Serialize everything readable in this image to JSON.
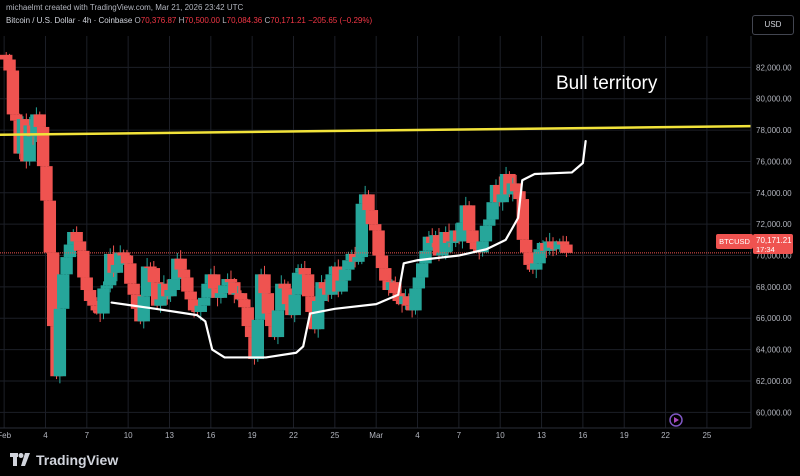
{
  "header": {
    "attribution": "michaelmt created with TradingView.com, Mar 21, 2026 23:42 UTC"
  },
  "symbol": {
    "name": "Bitcoin / U.S. Dollar · 4h · Coinbase",
    "open_label": "O",
    "open": "70,376.87",
    "high_label": "H",
    "high": "70,500.00",
    "low_label": "L",
    "low": "70,084.36",
    "close_label": "C",
    "close": "70,171.21",
    "change": "−205.65 (−0.29%)"
  },
  "currency_button": "USD",
  "annotation": "Bull territory",
  "price_tag": {
    "ticker": "BTCUSD",
    "price": "70,171.21",
    "countdown": "17:34"
  },
  "brand": "TradingView",
  "colors": {
    "up": "#26a69a",
    "down": "#ef5350",
    "level_line": "#f2e33a",
    "price_line": "#ef5350",
    "background": "#000000"
  },
  "chart_data": {
    "type": "candlestick",
    "timeframe": "4h",
    "ylim": [
      59000,
      84000
    ],
    "ytick_values": [
      60000,
      62000,
      64000,
      66000,
      68000,
      70000,
      72000,
      74000,
      76000,
      78000,
      80000,
      82000
    ],
    "ytick_labels": [
      "60,000.00",
      "62,000.00",
      "64,000.00",
      "66,000.00",
      "68,000.00",
      "70,000.00",
      "72,000.00",
      "74,000.00",
      "76,000.00",
      "78,000.00",
      "80,000.00",
      "82,000.00"
    ],
    "xtick_labels": [
      "Feb",
      "4",
      "7",
      "10",
      "13",
      "16",
      "19",
      "22",
      "25",
      "Mar",
      "4",
      "7",
      "10",
      "13",
      "16",
      "19",
      "22",
      "25"
    ],
    "x_range_days": [
      -0.3,
      54.2
    ],
    "last_price": 70171.21,
    "level_line": {
      "start": 77700,
      "end": 78250
    },
    "trend_path_days_price": [
      [
        7.8,
        67000
      ],
      [
        11,
        66600
      ],
      [
        14,
        66200
      ],
      [
        14.6,
        65800
      ],
      [
        15.1,
        64000
      ],
      [
        16,
        63500
      ],
      [
        19,
        63500
      ],
      [
        21.2,
        63800
      ],
      [
        21.7,
        64200
      ],
      [
        22.2,
        66300
      ],
      [
        24,
        66600
      ],
      [
        27,
        66900
      ],
      [
        28.6,
        67500
      ],
      [
        29,
        69500
      ],
      [
        30,
        69700
      ],
      [
        33,
        70000
      ],
      [
        35,
        70400
      ],
      [
        36.4,
        71000
      ],
      [
        37.3,
        72400
      ],
      [
        37.6,
        74800
      ],
      [
        38.5,
        75200
      ],
      [
        41.2,
        75300
      ],
      [
        42,
        75900
      ],
      [
        42.2,
        77300
      ]
    ],
    "candles_close": [
      82500,
      81800,
      79000,
      78600,
      76500,
      78700,
      76000,
      78300,
      77600,
      79000,
      78200,
      75700,
      73500,
      70200,
      65500,
      62300,
      66600,
      68800,
      69900,
      70700,
      71500,
      70900,
      70300,
      68600,
      67800,
      67100,
      66800,
      66500,
      66300,
      67900,
      68100,
      70100,
      68900,
      69400,
      70200,
      70000,
      69500,
      68200,
      67500,
      66600,
      65800,
      67400,
      69300,
      69200,
      68300,
      66800,
      67200,
      68200,
      67400,
      67800,
      68500,
      69800,
      69100,
      68600,
      67700,
      67200,
      66500,
      66400,
      66800,
      67300,
      68200,
      68800,
      67900,
      67300,
      67600,
      68100,
      68500,
      68300,
      67500,
      67600,
      67200,
      66700,
      65500,
      64800,
      63400,
      65900,
      68800,
      67600,
      66300,
      65500,
      64800,
      66500,
      68200,
      67900,
      66900,
      66200,
      67500,
      68900,
      69200,
      68800,
      67400,
      66400,
      65300,
      67100,
      68300,
      67900,
      67500,
      68800,
      69300,
      67700,
      68400,
      69100,
      69700,
      70100,
      69600,
      69900,
      73300,
      73900,
      72900,
      72000,
      71600,
      70000,
      69200,
      68400,
      67800,
      68300,
      67600,
      67100,
      66900,
      67400,
      66800,
      66500,
      67900,
      68600,
      69500,
      70300,
      71200,
      70800,
      71300,
      70000,
      70200,
      71500,
      70800,
      70900,
      71600,
      70900,
      72100,
      73200,
      71600,
      70800,
      70400,
      70200,
      70900,
      71900,
      72300,
      73400,
      74500,
      73400,
      73900,
      75200,
      73900,
      74600,
      74100,
      73600,
      71000,
      70200,
      69400,
      69100,
      69500,
      70400,
      70800,
      70300,
      70900,
      70500,
      70400,
      70900,
      70700,
      70171
    ]
  }
}
